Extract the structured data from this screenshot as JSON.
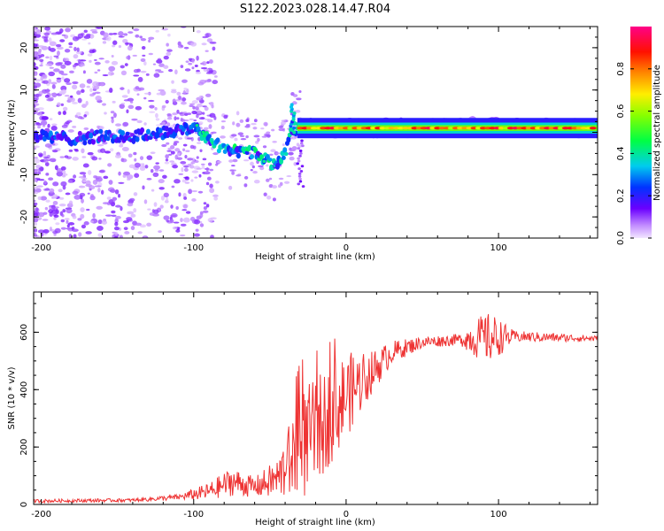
{
  "title": "S122.2023.028.14.47.R04",
  "chart_data": [
    {
      "type": "heatmap",
      "xlabel": "Height of straight line (km)",
      "ylabel": "Frequency (Hz)",
      "xlim": [
        -205,
        165
      ],
      "ylim": [
        -25,
        25
      ],
      "xticks": [
        -200,
        -100,
        0,
        100
      ],
      "yticks": [
        -20,
        -10,
        0,
        10,
        20
      ],
      "colorbar": {
        "label": "Normalized spectral amplitude",
        "range": [
          0,
          1
        ],
        "ticks": [
          "0.0",
          "0.2",
          "0.4",
          "0.6",
          "0.8"
        ],
        "colormap": "rainbow (purple to red to magenta)"
      },
      "main_ridge": [
        {
          "x": -200,
          "y": -1
        },
        {
          "x": -180,
          "y": -1.5
        },
        {
          "x": -160,
          "y": -1
        },
        {
          "x": -140,
          "y": -1
        },
        {
          "x": -120,
          "y": 0
        },
        {
          "x": -100,
          "y": 1
        },
        {
          "x": -95,
          "y": 0
        },
        {
          "x": -88,
          "y": -2
        },
        {
          "x": -80,
          "y": -4
        },
        {
          "x": -70,
          "y": -4.5
        },
        {
          "x": -60,
          "y": -5
        },
        {
          "x": -55,
          "y": -6
        },
        {
          "x": -45,
          "y": -8
        },
        {
          "x": -40,
          "y": -5
        },
        {
          "x": -35,
          "y": 1
        },
        {
          "x": -30,
          "y": 1
        },
        {
          "x": 0,
          "y": 1
        },
        {
          "x": 40,
          "y": 1
        },
        {
          "x": 80,
          "y": 1.5
        },
        {
          "x": 120,
          "y": 1
        },
        {
          "x": 165,
          "y": 1
        }
      ]
    },
    {
      "type": "line",
      "xlabel": "Height of straight line (km)",
      "ylabel": "SNR (10 * v/v)",
      "xlim": [
        -205,
        165
      ],
      "ylim": [
        0,
        740
      ],
      "xticks": [
        -200,
        -100,
        0,
        100
      ],
      "yticks": [
        0,
        200,
        400,
        600
      ],
      "series": [
        {
          "color": "#ee3333",
          "envelope": [
            {
              "x": -205,
              "base": 12,
              "amp": 6
            },
            {
              "x": -140,
              "base": 15,
              "amp": 6
            },
            {
              "x": -110,
              "base": 25,
              "amp": 10
            },
            {
              "x": -90,
              "base": 45,
              "amp": 30
            },
            {
              "x": -75,
              "base": 80,
              "amp": 50
            },
            {
              "x": -60,
              "base": 60,
              "amp": 35
            },
            {
              "x": -45,
              "base": 90,
              "amp": 70
            },
            {
              "x": -30,
              "base": 200,
              "amp": 200
            },
            {
              "x": -15,
              "base": 280,
              "amp": 180
            },
            {
              "x": 0,
              "base": 380,
              "amp": 150
            },
            {
              "x": 15,
              "base": 450,
              "amp": 80
            },
            {
              "x": 30,
              "base": 530,
              "amp": 40
            },
            {
              "x": 50,
              "base": 565,
              "amp": 20
            },
            {
              "x": 75,
              "base": 575,
              "amp": 20
            },
            {
              "x": 85,
              "base": 580,
              "amp": 70
            },
            {
              "x": 95,
              "base": 580,
              "amp": 90
            },
            {
              "x": 110,
              "base": 585,
              "amp": 20
            },
            {
              "x": 165,
              "base": 578,
              "amp": 10
            }
          ]
        }
      ]
    }
  ]
}
